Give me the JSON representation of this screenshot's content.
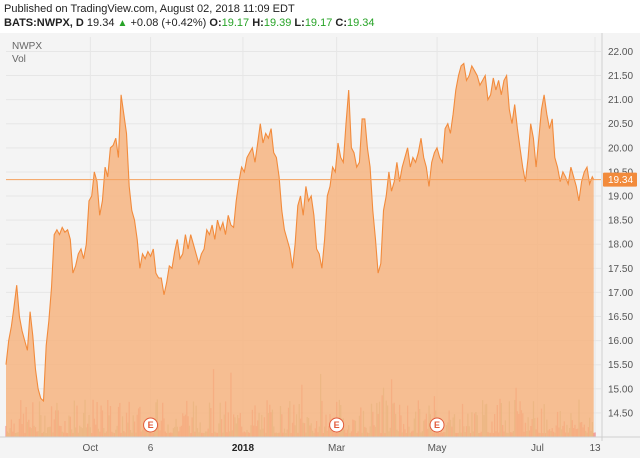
{
  "header": {
    "published": "Published on TradingView.com, August 02, 2018 11:09 EDT",
    "symbol": "BATS:NWPX, D",
    "last": "19.34",
    "change": "+0.08 (+0.42%)",
    "o_label": "O:",
    "o_value": "19.17",
    "h_label": "H:",
    "h_value": "19.39",
    "l_label": "L:",
    "l_value": "19.17",
    "c_label": "C:",
    "c_value": "19.34"
  },
  "colors": {
    "area_fill": "#f7b27d",
    "area_line": "#f28b3c",
    "current_price_line": "#f5a15e",
    "price_tag": "#f28b3c",
    "volume_red": "#f08f8f",
    "volume_green": "#b9c9a0",
    "grid": "#e6e6e6",
    "plot_bg": "#f4f4f4"
  },
  "chart_data": {
    "type": "area",
    "legend": [
      "NWPX",
      "Vol"
    ],
    "ylim": [
      14.0,
      22.3
    ],
    "yticks": [
      "22.00",
      "21.50",
      "21.00",
      "20.50",
      "20.00",
      "19.50",
      "19.00",
      "18.50",
      "18.00",
      "17.50",
      "17.00",
      "16.50",
      "16.00",
      "15.50",
      "15.00",
      "14.50"
    ],
    "current_price": 19.34,
    "current_price_label": "19.34",
    "xlabels": [
      {
        "label": "Oct",
        "bold": false,
        "i": 63
      },
      {
        "label": "6",
        "bold": false,
        "i": 108
      },
      {
        "label": "2018",
        "bold": true,
        "i": 177
      },
      {
        "label": "Mar",
        "bold": false,
        "i": 247
      },
      {
        "label": "May",
        "bold": false,
        "i": 322
      },
      {
        "label": "Jul",
        "bold": false,
        "i": 397
      },
      {
        "label": "13",
        "bold": false,
        "i": 440
      }
    ],
    "earnings_markers": [
      {
        "label": "E",
        "i": 108
      },
      {
        "label": "E",
        "i": 247
      },
      {
        "label": "E",
        "i": 322
      }
    ],
    "price_keypoints": [
      [
        0,
        15.5
      ],
      [
        2,
        16.0
      ],
      [
        4,
        16.3
      ],
      [
        6,
        16.7
      ],
      [
        8,
        17.15
      ],
      [
        10,
        16.5
      ],
      [
        12,
        16.2
      ],
      [
        14,
        16.0
      ],
      [
        16,
        15.8
      ],
      [
        18,
        16.6
      ],
      [
        20,
        16.1
      ],
      [
        22,
        15.4
      ],
      [
        24,
        15.0
      ],
      [
        26,
        14.8
      ],
      [
        28,
        14.75
      ],
      [
        30,
        15.9
      ],
      [
        32,
        16.4
      ],
      [
        34,
        17.1
      ],
      [
        36,
        18.2
      ],
      [
        38,
        18.3
      ],
      [
        40,
        18.2
      ],
      [
        42,
        18.35
      ],
      [
        44,
        18.25
      ],
      [
        46,
        18.3
      ],
      [
        48,
        18.1
      ],
      [
        50,
        17.4
      ],
      [
        52,
        17.55
      ],
      [
        54,
        17.8
      ],
      [
        56,
        17.9
      ],
      [
        58,
        17.7
      ],
      [
        60,
        18.0
      ],
      [
        62,
        18.9
      ],
      [
        64,
        19.0
      ],
      [
        66,
        19.5
      ],
      [
        68,
        19.3
      ],
      [
        70,
        18.6
      ],
      [
        72,
        18.9
      ],
      [
        74,
        19.6
      ],
      [
        76,
        19.4
      ],
      [
        78,
        20.0
      ],
      [
        80,
        20.05
      ],
      [
        82,
        20.2
      ],
      [
        84,
        19.8
      ],
      [
        86,
        21.1
      ],
      [
        88,
        20.7
      ],
      [
        90,
        20.3
      ],
      [
        92,
        19.2
      ],
      [
        94,
        18.7
      ],
      [
        96,
        18.5
      ],
      [
        98,
        18.1
      ],
      [
        100,
        17.5
      ],
      [
        102,
        17.8
      ],
      [
        104,
        17.7
      ],
      [
        106,
        17.85
      ],
      [
        108,
        17.75
      ],
      [
        110,
        17.9
      ],
      [
        112,
        17.4
      ],
      [
        114,
        17.3
      ],
      [
        116,
        17.3
      ],
      [
        118,
        16.95
      ],
      [
        120,
        17.2
      ],
      [
        122,
        17.55
      ],
      [
        124,
        17.5
      ],
      [
        126,
        17.85
      ],
      [
        128,
        18.1
      ],
      [
        130,
        17.7
      ],
      [
        132,
        17.8
      ],
      [
        134,
        18.2
      ],
      [
        136,
        17.9
      ],
      [
        138,
        18.2
      ],
      [
        140,
        18.0
      ],
      [
        142,
        17.8
      ],
      [
        144,
        17.6
      ],
      [
        146,
        17.8
      ],
      [
        148,
        17.9
      ],
      [
        150,
        18.3
      ],
      [
        152,
        18.2
      ],
      [
        154,
        18.4
      ],
      [
        156,
        18.1
      ],
      [
        158,
        18.5
      ],
      [
        160,
        18.3
      ],
      [
        162,
        18.45
      ],
      [
        164,
        18.2
      ],
      [
        166,
        18.6
      ],
      [
        168,
        18.4
      ],
      [
        170,
        18.35
      ],
      [
        172,
        18.9
      ],
      [
        174,
        19.3
      ],
      [
        176,
        19.6
      ],
      [
        178,
        19.5
      ],
      [
        180,
        19.8
      ],
      [
        182,
        19.9
      ],
      [
        184,
        20.0
      ],
      [
        186,
        19.7
      ],
      [
        188,
        20.1
      ],
      [
        190,
        20.5
      ],
      [
        192,
        20.1
      ],
      [
        194,
        20.3
      ],
      [
        196,
        20.2
      ],
      [
        198,
        20.4
      ],
      [
        200,
        19.9
      ],
      [
        202,
        19.8
      ],
      [
        204,
        19.4
      ],
      [
        206,
        18.7
      ],
      [
        208,
        18.3
      ],
      [
        210,
        18.1
      ],
      [
        212,
        17.9
      ],
      [
        214,
        17.5
      ],
      [
        216,
        18.0
      ],
      [
        218,
        18.8
      ],
      [
        220,
        19.0
      ],
      [
        222,
        18.6
      ],
      [
        224,
        19.2
      ],
      [
        226,
        18.9
      ],
      [
        228,
        19.0
      ],
      [
        230,
        18.6
      ],
      [
        232,
        17.9
      ],
      [
        234,
        17.8
      ],
      [
        236,
        17.5
      ],
      [
        238,
        18.1
      ],
      [
        240,
        19.0
      ],
      [
        242,
        19.2
      ],
      [
        244,
        19.6
      ],
      [
        246,
        19.5
      ],
      [
        248,
        20.1
      ],
      [
        250,
        19.8
      ],
      [
        252,
        19.7
      ],
      [
        254,
        20.5
      ],
      [
        256,
        21.2
      ],
      [
        258,
        20.0
      ],
      [
        260,
        19.9
      ],
      [
        262,
        19.6
      ],
      [
        264,
        19.7
      ],
      [
        266,
        20.6
      ],
      [
        268,
        20.6
      ],
      [
        270,
        20.0
      ],
      [
        272,
        19.6
      ],
      [
        274,
        18.7
      ],
      [
        276,
        18.1
      ],
      [
        278,
        17.4
      ],
      [
        280,
        17.6
      ],
      [
        282,
        18.7
      ],
      [
        284,
        19.0
      ],
      [
        286,
        19.5
      ],
      [
        288,
        19.1
      ],
      [
        290,
        19.3
      ],
      [
        292,
        19.7
      ],
      [
        294,
        19.3
      ],
      [
        296,
        19.6
      ],
      [
        298,
        19.8
      ],
      [
        300,
        20.0
      ],
      [
        302,
        19.6
      ],
      [
        304,
        19.8
      ],
      [
        306,
        19.7
      ],
      [
        308,
        19.9
      ],
      [
        310,
        20.2
      ],
      [
        312,
        19.8
      ],
      [
        314,
        19.6
      ],
      [
        316,
        19.2
      ],
      [
        318,
        19.7
      ],
      [
        320,
        19.9
      ],
      [
        322,
        20.0
      ],
      [
        324,
        19.8
      ],
      [
        326,
        19.7
      ],
      [
        328,
        20.4
      ],
      [
        330,
        20.5
      ],
      [
        332,
        20.3
      ],
      [
        334,
        20.7
      ],
      [
        336,
        21.2
      ],
      [
        338,
        21.5
      ],
      [
        340,
        21.7
      ],
      [
        342,
        21.75
      ],
      [
        344,
        21.4
      ],
      [
        346,
        21.5
      ],
      [
        348,
        21.7
      ],
      [
        350,
        21.6
      ],
      [
        352,
        21.5
      ],
      [
        354,
        21.3
      ],
      [
        356,
        21.4
      ],
      [
        358,
        21.5
      ],
      [
        360,
        21.0
      ],
      [
        362,
        21.1
      ],
      [
        364,
        21.45
      ],
      [
        366,
        21.2
      ],
      [
        368,
        21.4
      ],
      [
        370,
        21.1
      ],
      [
        372,
        21.4
      ],
      [
        374,
        21.5
      ],
      [
        376,
        20.8
      ],
      [
        378,
        20.5
      ],
      [
        380,
        20.9
      ],
      [
        382,
        20.4
      ],
      [
        384,
        20.0
      ],
      [
        386,
        19.6
      ],
      [
        388,
        19.3
      ],
      [
        390,
        19.8
      ],
      [
        392,
        20.5
      ],
      [
        394,
        20.2
      ],
      [
        396,
        19.6
      ],
      [
        398,
        20.2
      ],
      [
        400,
        20.8
      ],
      [
        402,
        21.1
      ],
      [
        404,
        20.7
      ],
      [
        406,
        20.4
      ],
      [
        408,
        20.6
      ],
      [
        410,
        19.8
      ],
      [
        412,
        19.6
      ],
      [
        414,
        19.3
      ],
      [
        416,
        19.5
      ],
      [
        418,
        19.4
      ],
      [
        420,
        19.25
      ],
      [
        422,
        19.6
      ],
      [
        424,
        19.4
      ],
      [
        426,
        19.2
      ],
      [
        428,
        18.9
      ],
      [
        430,
        19.3
      ],
      [
        432,
        19.5
      ],
      [
        434,
        19.6
      ],
      [
        436,
        19.25
      ],
      [
        438,
        19.4
      ],
      [
        439,
        19.34
      ]
    ],
    "volume_note": "volume bars shown at bottom, unlabeled scale"
  }
}
